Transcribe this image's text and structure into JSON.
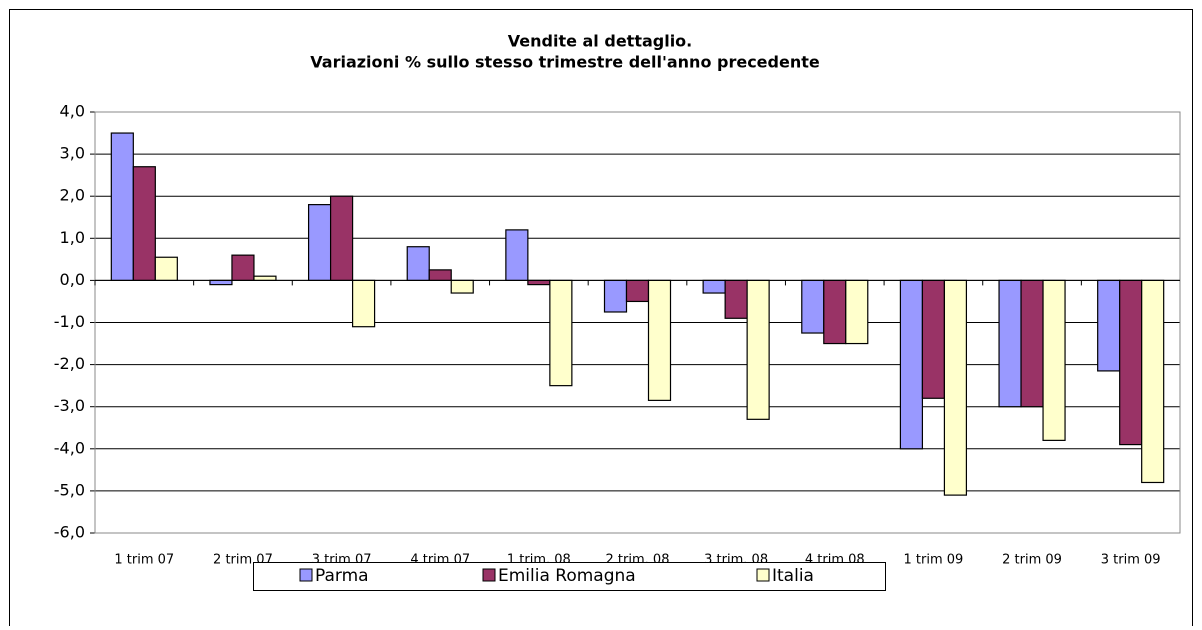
{
  "chart_data": {
    "type": "bar",
    "title": "Vendite al dettaglio.",
    "subtitle": "Variazioni % sullo stesso trimestre dell'anno precedente",
    "categories": [
      "1 trim 07",
      "2 trim 07",
      "3 trim 07",
      "4 trim 07",
      "1 trim. 08",
      "2 trim. 08",
      "3 trim. 08",
      "4 trim 08",
      "1 trim 09",
      "2 trim 09",
      "3 trim 09"
    ],
    "series": [
      {
        "name": "Parma",
        "color": "#9999ff",
        "values": [
          3.5,
          -0.1,
          1.8,
          0.8,
          1.2,
          -0.75,
          -0.3,
          -1.25,
          -4.0,
          -3.0,
          -2.15
        ]
      },
      {
        "name": "Emilia Romagna",
        "color": "#993366",
        "values": [
          2.7,
          0.6,
          2.0,
          0.25,
          -0.1,
          -0.5,
          -0.9,
          -1.5,
          -2.8,
          -3.0,
          -3.9
        ]
      },
      {
        "name": "Italia",
        "color": "#ffffcc",
        "values": [
          0.55,
          0.1,
          -1.1,
          -0.3,
          -2.5,
          -2.85,
          -3.3,
          -1.5,
          -5.1,
          -3.8,
          -4.8
        ]
      }
    ],
    "ylim": [
      -6,
      4
    ],
    "yticks": [
      {
        "value": -6,
        "label": "-6,0"
      },
      {
        "value": -5,
        "label": "-5,0"
      },
      {
        "value": -4,
        "label": "-4,0"
      },
      {
        "value": -3,
        "label": "-3,0"
      },
      {
        "value": -2,
        "label": "-2,0"
      },
      {
        "value": -1,
        "label": "-1,0"
      },
      {
        "value": 0,
        "label": "0,0"
      },
      {
        "value": 1,
        "label": "1,0"
      },
      {
        "value": 2,
        "label": "2,0"
      },
      {
        "value": 3,
        "label": "3,0"
      },
      {
        "value": 4,
        "label": "4,0"
      }
    ],
    "grid": true,
    "legend": "bottom"
  }
}
